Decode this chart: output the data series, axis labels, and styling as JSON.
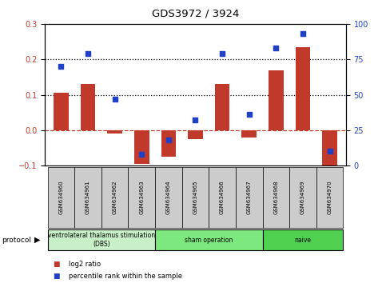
{
  "title": "GDS3972 / 3924",
  "samples": [
    "GSM634960",
    "GSM634961",
    "GSM634962",
    "GSM634963",
    "GSM634964",
    "GSM634965",
    "GSM634966",
    "GSM634967",
    "GSM634968",
    "GSM634969",
    "GSM634970"
  ],
  "log2_ratio": [
    0.105,
    0.13,
    -0.01,
    -0.095,
    -0.075,
    -0.025,
    0.13,
    -0.02,
    0.17,
    0.235,
    -0.115
  ],
  "percentile_rank": [
    70,
    79,
    47,
    8,
    18,
    32,
    79,
    36,
    83,
    93,
    10
  ],
  "bar_color": "#c0392b",
  "dot_color": "#2040c8",
  "ylim_left": [
    -0.1,
    0.3
  ],
  "ylim_right": [
    0,
    100
  ],
  "yticks_left": [
    -0.1,
    0.0,
    0.1,
    0.2,
    0.3
  ],
  "yticks_right": [
    0,
    25,
    50,
    75,
    100
  ],
  "hlines": [
    0.2,
    0.1
  ],
  "hline_zero_color": "#c0392b",
  "hline_dotted_color": "#000000",
  "protocol_groups": [
    {
      "label": "ventrolateral thalamus stimulation\n(DBS)",
      "start": 0,
      "end": 3,
      "color": "#c8f0c8"
    },
    {
      "label": "sham operation",
      "start": 4,
      "end": 7,
      "color": "#7de87d"
    },
    {
      "label": "naive",
      "start": 8,
      "end": 10,
      "color": "#50d050"
    }
  ],
  "legend_bar_label": "log2 ratio",
  "legend_dot_label": "percentile rank within the sample",
  "xlabel_area_color": "#cccccc",
  "protocol_label": "protocol",
  "bar_width": 0.55
}
